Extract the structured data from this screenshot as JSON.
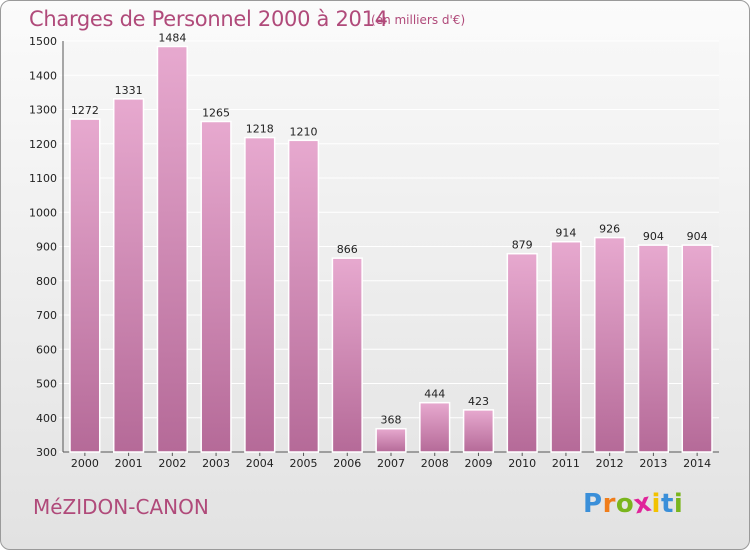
{
  "header": {
    "title": "Charges de Personnel 2000 à 2014",
    "subtitle": "(en milliers d'€)"
  },
  "footer": {
    "commune": "MéZIDON-CANON",
    "logo_letters": [
      "P",
      "r",
      "o",
      "x",
      "i",
      "t",
      "i"
    ],
    "logo_colors": [
      "#3a8fd9",
      "#f07d1a",
      "#7ab51d",
      "#e0249a",
      "#f2c200",
      "#3a8fd9",
      "#7ab51d"
    ]
  },
  "chart_data": {
    "type": "bar",
    "categories": [
      "2000",
      "2001",
      "2002",
      "2003",
      "2004",
      "2005",
      "2006",
      "2007",
      "2008",
      "2009",
      "2010",
      "2011",
      "2012",
      "2013",
      "2014"
    ],
    "values": [
      1272,
      1331,
      1484,
      1265,
      1218,
      1210,
      866,
      368,
      444,
      423,
      879,
      914,
      926,
      904,
      904
    ],
    "title": "Charges de Personnel 2000 à 2014",
    "ylim": [
      300,
      1500
    ],
    "yticks": [
      300,
      400,
      500,
      600,
      700,
      800,
      900,
      1000,
      1100,
      1200,
      1300,
      1400,
      1500
    ],
    "grid": true,
    "bar_color": "#d98ab8",
    "bar_color_dark": "#b76a98"
  }
}
